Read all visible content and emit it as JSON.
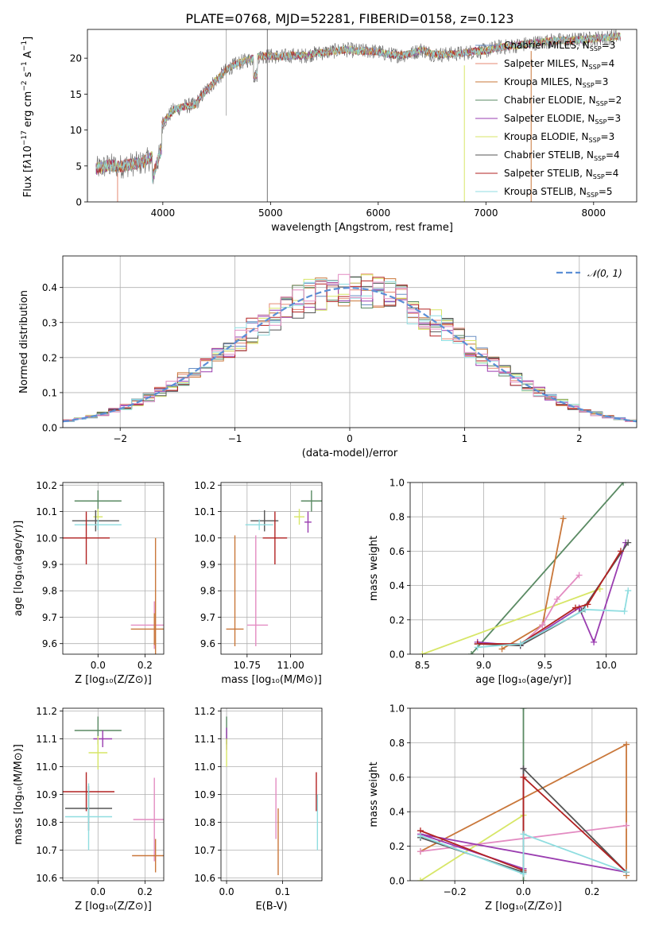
{
  "figure_title": "PLATE=0768, MJD=52281, FIBERID=0158, z=0.123",
  "colors": {
    "Chabrier MILES": "#6a8fc4",
    "Salpeter MILES": "#e58a73",
    "Kroupa MILES": "#c9773a",
    "Chabrier ELODIE": "#5a8a63",
    "Salpeter ELODIE": "#9a3db0",
    "Kroupa ELODIE": "#d7e667",
    "Chabrier STELIB": "#555555",
    "Salpeter STELIB": "#b22222",
    "Kroupa STELIB": "#8fdde0",
    "Kroupa MILES pink": "#e38cc2",
    "gauss": "#5b8fd6"
  },
  "chart_data": [
    {
      "id": "spectrum",
      "type": "line",
      "xlabel": "wavelength [Angstrom, rest frame]",
      "ylabel": "Flux [f_λ10^-17 erg cm^-2 s^-1 A^-1]",
      "xlim": [
        3300,
        8400
      ],
      "ylim": [
        0,
        24
      ],
      "xticks": [
        4000,
        5000,
        6000,
        7000,
        8000
      ],
      "yticks": [
        0,
        5,
        10,
        15,
        20
      ],
      "grid": false,
      "legend_position": "right",
      "legend": [
        {
          "label": "Chabrier MILES, N_SSP=3",
          "color": "#6a8fc4"
        },
        {
          "label": "Salpeter MILES, N_SSP=4",
          "color": "#e58a73"
        },
        {
          "label": "Kroupa MILES, N_SSP=3",
          "color": "#c9773a"
        },
        {
          "label": "Chabrier ELODIE, N_SSP=2",
          "color": "#5a8a63"
        },
        {
          "label": "Salpeter ELODIE, N_SSP=3",
          "color": "#9a3db0"
        },
        {
          "label": "Kroupa ELODIE, N_SSP=3",
          "color": "#d7e667"
        },
        {
          "label": "Chabrier STELIB, N_SSP=4",
          "color": "#555555"
        },
        {
          "label": "Salpeter STELIB, N_SSP=4",
          "color": "#b22222"
        },
        {
          "label": "Kroupa STELIB, N_SSP=5",
          "color": "#8fdde0"
        }
      ],
      "continuum": [
        [
          3380,
          4.6
        ],
        [
          3500,
          5.1
        ],
        [
          3600,
          4.9
        ],
        [
          3700,
          5.2
        ],
        [
          3800,
          5.4
        ],
        [
          3900,
          6.2
        ],
        [
          4000,
          11
        ],
        [
          4100,
          12.8
        ],
        [
          4200,
          13.3
        ],
        [
          4300,
          13.5
        ],
        [
          4400,
          15.5
        ],
        [
          4500,
          17
        ],
        [
          4600,
          18.5
        ],
        [
          4700,
          19.3
        ],
        [
          4800,
          19.8
        ],
        [
          4900,
          20.3
        ],
        [
          5000,
          20.3
        ],
        [
          5100,
          20.2
        ],
        [
          5200,
          20.4
        ],
        [
          5300,
          20.3
        ],
        [
          5400,
          20.6
        ],
        [
          5500,
          20.8
        ],
        [
          5600,
          21
        ],
        [
          5700,
          21.2
        ],
        [
          5800,
          21
        ],
        [
          5900,
          21
        ],
        [
          6000,
          20.9
        ],
        [
          6100,
          20.5
        ],
        [
          6200,
          20.4
        ],
        [
          6300,
          20.6
        ],
        [
          6400,
          21.2
        ],
        [
          6500,
          20.6
        ],
        [
          6600,
          20.5
        ],
        [
          6700,
          20.6
        ],
        [
          6800,
          20.7
        ],
        [
          6900,
          21
        ],
        [
          7000,
          21
        ],
        [
          7100,
          21.5
        ],
        [
          7200,
          21.6
        ],
        [
          7300,
          21.8
        ],
        [
          7400,
          22
        ],
        [
          7600,
          22.4
        ],
        [
          7800,
          22.5
        ],
        [
          8000,
          22.7
        ],
        [
          8200,
          23
        ]
      ]
    },
    {
      "id": "residual_hist",
      "type": "area",
      "xlabel": "(data-model)/error",
      "ylabel": "Normed distribution",
      "xlim": [
        -2.5,
        2.5
      ],
      "ylim": [
        0,
        0.49
      ],
      "xticks": [
        -2,
        -1,
        0,
        1,
        2
      ],
      "yticks": [
        0.0,
        0.1,
        0.2,
        0.3,
        0.4
      ],
      "grid": true,
      "legend_position": "top-right",
      "legend": [
        {
          "label": "N(0,1)",
          "color": "#5b8fd6"
        }
      ],
      "gaussian": {
        "mean": 0,
        "sigma": 1
      }
    },
    {
      "id": "age_vs_Z",
      "type": "scatter",
      "xlabel": "Z [log10(Z/Z⊙)]",
      "ylabel": "age [log10(age/yr)]",
      "xlim": [
        -0.15,
        0.28
      ],
      "ylim": [
        9.56,
        10.21
      ],
      "xticks": [
        0.0,
        0.2
      ],
      "yticks": [
        9.6,
        9.7,
        9.8,
        9.9,
        10.0,
        10.1,
        10.2
      ],
      "grid": true,
      "points": [
        {
          "x": 0.0,
          "y": 10.14,
          "xerr": 0.1,
          "yerr": 0.04,
          "color": "#5a8a63"
        },
        {
          "x": 0.0,
          "y": 10.08,
          "xerr": 0.02,
          "yerr": 0.03,
          "color": "#d7e667"
        },
        {
          "x": -0.01,
          "y": 10.065,
          "xerr": 0.1,
          "yerr": 0.04,
          "color": "#555555"
        },
        {
          "x": 0.0,
          "y": 10.05,
          "xerr": 0.1,
          "yerr": 0.02,
          "color": "#8fdde0"
        },
        {
          "x": -0.05,
          "y": 10.0,
          "xerr": 0.1,
          "yerr": 0.1,
          "color": "#b22222"
        },
        {
          "x": 0.24,
          "y": 9.67,
          "xerr": 0.1,
          "yerr": 0.09,
          "color": "#e38cc2"
        },
        {
          "x": 0.24,
          "y": 9.655,
          "xerr": 0.1,
          "yerr": 0.06,
          "color": "#c9773a"
        },
        {
          "x": 0.245,
          "y": 9.75,
          "xerr": 0.0,
          "yerr": 0.25,
          "color": "#c9773a"
        }
      ]
    },
    {
      "id": "age_vs_mass",
      "type": "scatter",
      "xlabel": "mass [log10(M/M⊙)]",
      "ylabel": "",
      "xlim": [
        10.6,
        11.18
      ],
      "ylim": [
        9.56,
        10.21
      ],
      "xticks": [
        10.75,
        11.0
      ],
      "yticks": [
        9.6,
        9.7,
        9.8,
        9.9,
        10.0,
        10.1,
        10.2
      ],
      "grid": true,
      "points": [
        {
          "x": 11.12,
          "y": 10.14,
          "xerr": 0.06,
          "yerr": 0.04,
          "color": "#5a8a63"
        },
        {
          "x": 11.05,
          "y": 10.08,
          "xerr": 0.03,
          "yerr": 0.03,
          "color": "#d7e667"
        },
        {
          "x": 11.1,
          "y": 10.06,
          "xerr": 0.02,
          "yerr": 0.04,
          "color": "#9a3db0"
        },
        {
          "x": 10.85,
          "y": 10.065,
          "xerr": 0.08,
          "yerr": 0.04,
          "color": "#555555"
        },
        {
          "x": 10.82,
          "y": 10.05,
          "xerr": 0.08,
          "yerr": 0.02,
          "color": "#8fdde0"
        },
        {
          "x": 10.91,
          "y": 10.0,
          "xerr": 0.07,
          "yerr": 0.1,
          "color": "#b22222"
        },
        {
          "x": 10.8,
          "y": 9.8,
          "xerr": 0.0,
          "yerr": 0.21,
          "color": "#e38cc2"
        },
        {
          "x": 10.81,
          "y": 9.67,
          "xerr": 0.06,
          "yerr": 0.0,
          "color": "#e38cc2"
        },
        {
          "x": 10.68,
          "y": 9.655,
          "xerr": 0.05,
          "yerr": 0.0,
          "color": "#c9773a"
        },
        {
          "x": 10.68,
          "y": 9.8,
          "xerr": 0.0,
          "yerr": 0.21,
          "color": "#c9773a"
        }
      ]
    },
    {
      "id": "weight_vs_age",
      "type": "line",
      "xlabel": "age [log10(age/yr)]",
      "ylabel": "mass weight",
      "xlim": [
        8.4,
        10.25
      ],
      "ylim": [
        0,
        1
      ],
      "xticks": [
        8.5,
        9.0,
        9.5,
        10.0
      ],
      "yticks": [
        0.0,
        0.2,
        0.4,
        0.6,
        0.8,
        1.0
      ],
      "grid": true,
      "series": [
        {
          "color": "#5a8a63",
          "points": [
            [
              8.9,
              0.0
            ],
            [
              10.14,
              1.0
            ]
          ]
        },
        {
          "color": "#d7e667",
          "points": [
            [
              8.5,
              0.0
            ],
            [
              9.95,
              0.38
            ]
          ]
        },
        {
          "color": "#c9773a",
          "points": [
            [
              9.15,
              0.03
            ],
            [
              9.48,
              0.17
            ],
            [
              9.65,
              0.79
            ]
          ]
        },
        {
          "color": "#e38cc2",
          "points": [
            [
              9.3,
              0.05
            ],
            [
              9.48,
              0.17
            ],
            [
              9.6,
              0.32
            ],
            [
              9.78,
              0.46
            ]
          ]
        },
        {
          "color": "#9a3db0",
          "points": [
            [
              8.95,
              0.07
            ],
            [
              9.3,
              0.05
            ],
            [
              9.78,
              0.27
            ],
            [
              9.9,
              0.07
            ],
            [
              10.16,
              0.65
            ]
          ]
        },
        {
          "color": "#555555",
          "points": [
            [
              8.95,
              0.06
            ],
            [
              9.3,
              0.05
            ],
            [
              9.8,
              0.25
            ],
            [
              10.18,
              0.65
            ]
          ]
        },
        {
          "color": "#b22222",
          "points": [
            [
              8.95,
              0.06
            ],
            [
              9.3,
              0.06
            ],
            [
              9.75,
              0.27
            ],
            [
              9.85,
              0.29
            ],
            [
              10.12,
              0.6
            ]
          ]
        },
        {
          "color": "#8fdde0",
          "points": [
            [
              8.95,
              0.04
            ],
            [
              9.3,
              0.06
            ],
            [
              9.83,
              0.26
            ],
            [
              10.15,
              0.25
            ],
            [
              10.18,
              0.37
            ]
          ]
        }
      ]
    },
    {
      "id": "mass_vs_Z",
      "type": "scatter",
      "xlabel": "Z [log10(Z/Z⊙)]",
      "ylabel": "mass [log10(M/M⊙)]",
      "xlim": [
        -0.15,
        0.28
      ],
      "ylim": [
        10.59,
        11.21
      ],
      "xticks": [
        0.0,
        0.2
      ],
      "yticks": [
        10.6,
        10.7,
        10.8,
        10.9,
        11.0,
        11.1,
        11.2
      ],
      "grid": true,
      "points": [
        {
          "x": 0.0,
          "y": 11.13,
          "xerr": 0.1,
          "yerr": 0.05,
          "color": "#5a8a63"
        },
        {
          "x": 0.02,
          "y": 11.1,
          "xerr": 0.04,
          "yerr": 0.03,
          "color": "#9a3db0"
        },
        {
          "x": 0.0,
          "y": 11.05,
          "xerr": 0.04,
          "yerr": 0.06,
          "color": "#d7e667"
        },
        {
          "x": -0.05,
          "y": 10.91,
          "xerr": 0.12,
          "yerr": 0.07,
          "color": "#b22222"
        },
        {
          "x": -0.04,
          "y": 10.85,
          "xerr": 0.1,
          "yerr": 0.08,
          "color": "#555555"
        },
        {
          "x": -0.04,
          "y": 10.82,
          "xerr": 0.1,
          "yerr": 0.12,
          "color": "#8fdde0"
        },
        {
          "x": 0.24,
          "y": 10.81,
          "xerr": 0.09,
          "yerr": 0.15,
          "color": "#e38cc2"
        },
        {
          "x": 0.245,
          "y": 10.68,
          "xerr": 0.1,
          "yerr": 0.06,
          "color": "#c9773a"
        }
      ]
    },
    {
      "id": "mass_vs_EBV",
      "type": "scatter",
      "xlabel": "E(B-V)",
      "ylabel": "",
      "xlim": [
        -0.01,
        0.17
      ],
      "ylim": [
        10.59,
        11.21
      ],
      "xticks": [
        0.0,
        0.1
      ],
      "yticks": [
        10.6,
        10.7,
        10.8,
        10.9,
        11.0,
        11.1,
        11.2
      ],
      "grid": true,
      "points": [
        {
          "x": 0.0,
          "y": 11.13,
          "yerr": 0.05,
          "color": "#5a8a63"
        },
        {
          "x": 0.0,
          "y": 11.1,
          "yerr": 0.04,
          "color": "#9a3db0"
        },
        {
          "x": 0.0,
          "y": 11.05,
          "yerr": 0.05,
          "color": "#d7e667"
        },
        {
          "x": 0.088,
          "y": 10.85,
          "yerr": 0.11,
          "color": "#e38cc2"
        },
        {
          "x": 0.092,
          "y": 10.73,
          "yerr": 0.12,
          "color": "#c9773a"
        },
        {
          "x": 0.16,
          "y": 10.91,
          "yerr": 0.07,
          "color": "#b22222"
        },
        {
          "x": 0.162,
          "y": 10.8,
          "yerr": 0.1,
          "color": "#8fdde0"
        }
      ]
    },
    {
      "id": "weight_vs_Z",
      "type": "line",
      "xlabel": "Z [log10(Z/Z⊙)]",
      "ylabel": "mass weight",
      "xlim": [
        -0.33,
        0.33
      ],
      "ylim": [
        0,
        1
      ],
      "xticks": [
        -0.2,
        0.0,
        0.2
      ],
      "yticks": [
        0.0,
        0.2,
        0.4,
        0.6,
        0.8,
        1.0
      ],
      "grid": true,
      "series": [
        {
          "color": "#5a8a63",
          "points": [
            [
              0.0,
              0.0
            ],
            [
              0.0,
              1.0
            ]
          ]
        },
        {
          "color": "#d7e667",
          "points": [
            [
              -0.3,
              0.0
            ],
            [
              0.0,
              0.38
            ]
          ]
        },
        {
          "color": "#c9773a",
          "points": [
            [
              -0.3,
              0.17
            ],
            [
              0.3,
              0.79
            ],
            [
              0.3,
              0.03
            ]
          ]
        },
        {
          "color": "#e38cc2",
          "points": [
            [
              -0.3,
              0.17
            ],
            [
              0.3,
              0.32
            ]
          ]
        },
        {
          "color": "#9a3db0",
          "points": [
            [
              0.0,
              0.65
            ],
            [
              0.0,
              0.07
            ],
            [
              -0.3,
              0.27
            ],
            [
              0.3,
              0.05
            ]
          ]
        },
        {
          "color": "#555555",
          "points": [
            [
              -0.3,
              0.25
            ],
            [
              0.0,
              0.05
            ],
            [
              0.0,
              0.65
            ],
            [
              0.3,
              0.05
            ]
          ]
        },
        {
          "color": "#b22222",
          "points": [
            [
              -0.3,
              0.29
            ],
            [
              0.0,
              0.06
            ],
            [
              0.0,
              0.6
            ],
            [
              0.3,
              0.05
            ]
          ]
        },
        {
          "color": "#8fdde0",
          "points": [
            [
              -0.3,
              0.26
            ],
            [
              0.0,
              0.04
            ],
            [
              0.0,
              0.27
            ],
            [
              0.3,
              0.05
            ]
          ]
        }
      ]
    }
  ]
}
